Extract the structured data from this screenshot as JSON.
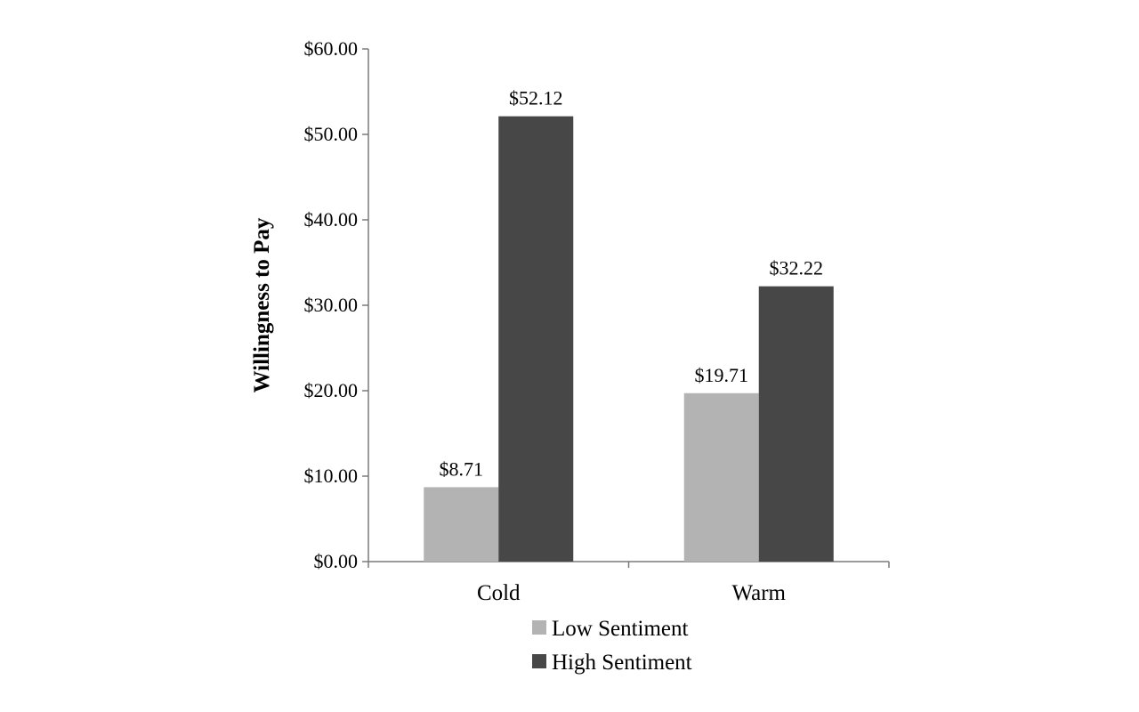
{
  "chart_data": {
    "type": "bar",
    "title": "",
    "xlabel": "",
    "ylabel": "Willingness to Pay",
    "ylim": [
      0,
      60
    ],
    "yticks": [
      0,
      10,
      20,
      30,
      40,
      50,
      60
    ],
    "ytick_labels": [
      "$0.00",
      "$10.00",
      "$20.00",
      "$30.00",
      "$40.00",
      "$50.00",
      "$60.00"
    ],
    "categories": [
      "Cold",
      "Warm"
    ],
    "series": [
      {
        "name": "Low Sentiment",
        "color": "#b3b3b3",
        "values": [
          8.71,
          19.71
        ],
        "labels": [
          "$8.71",
          "$19.71"
        ]
      },
      {
        "name": "High Sentiment",
        "color": "#474747",
        "values": [
          52.12,
          32.22
        ],
        "labels": [
          "$52.12",
          "$32.22"
        ]
      }
    ],
    "grid": false,
    "legend_position": "bottom"
  }
}
